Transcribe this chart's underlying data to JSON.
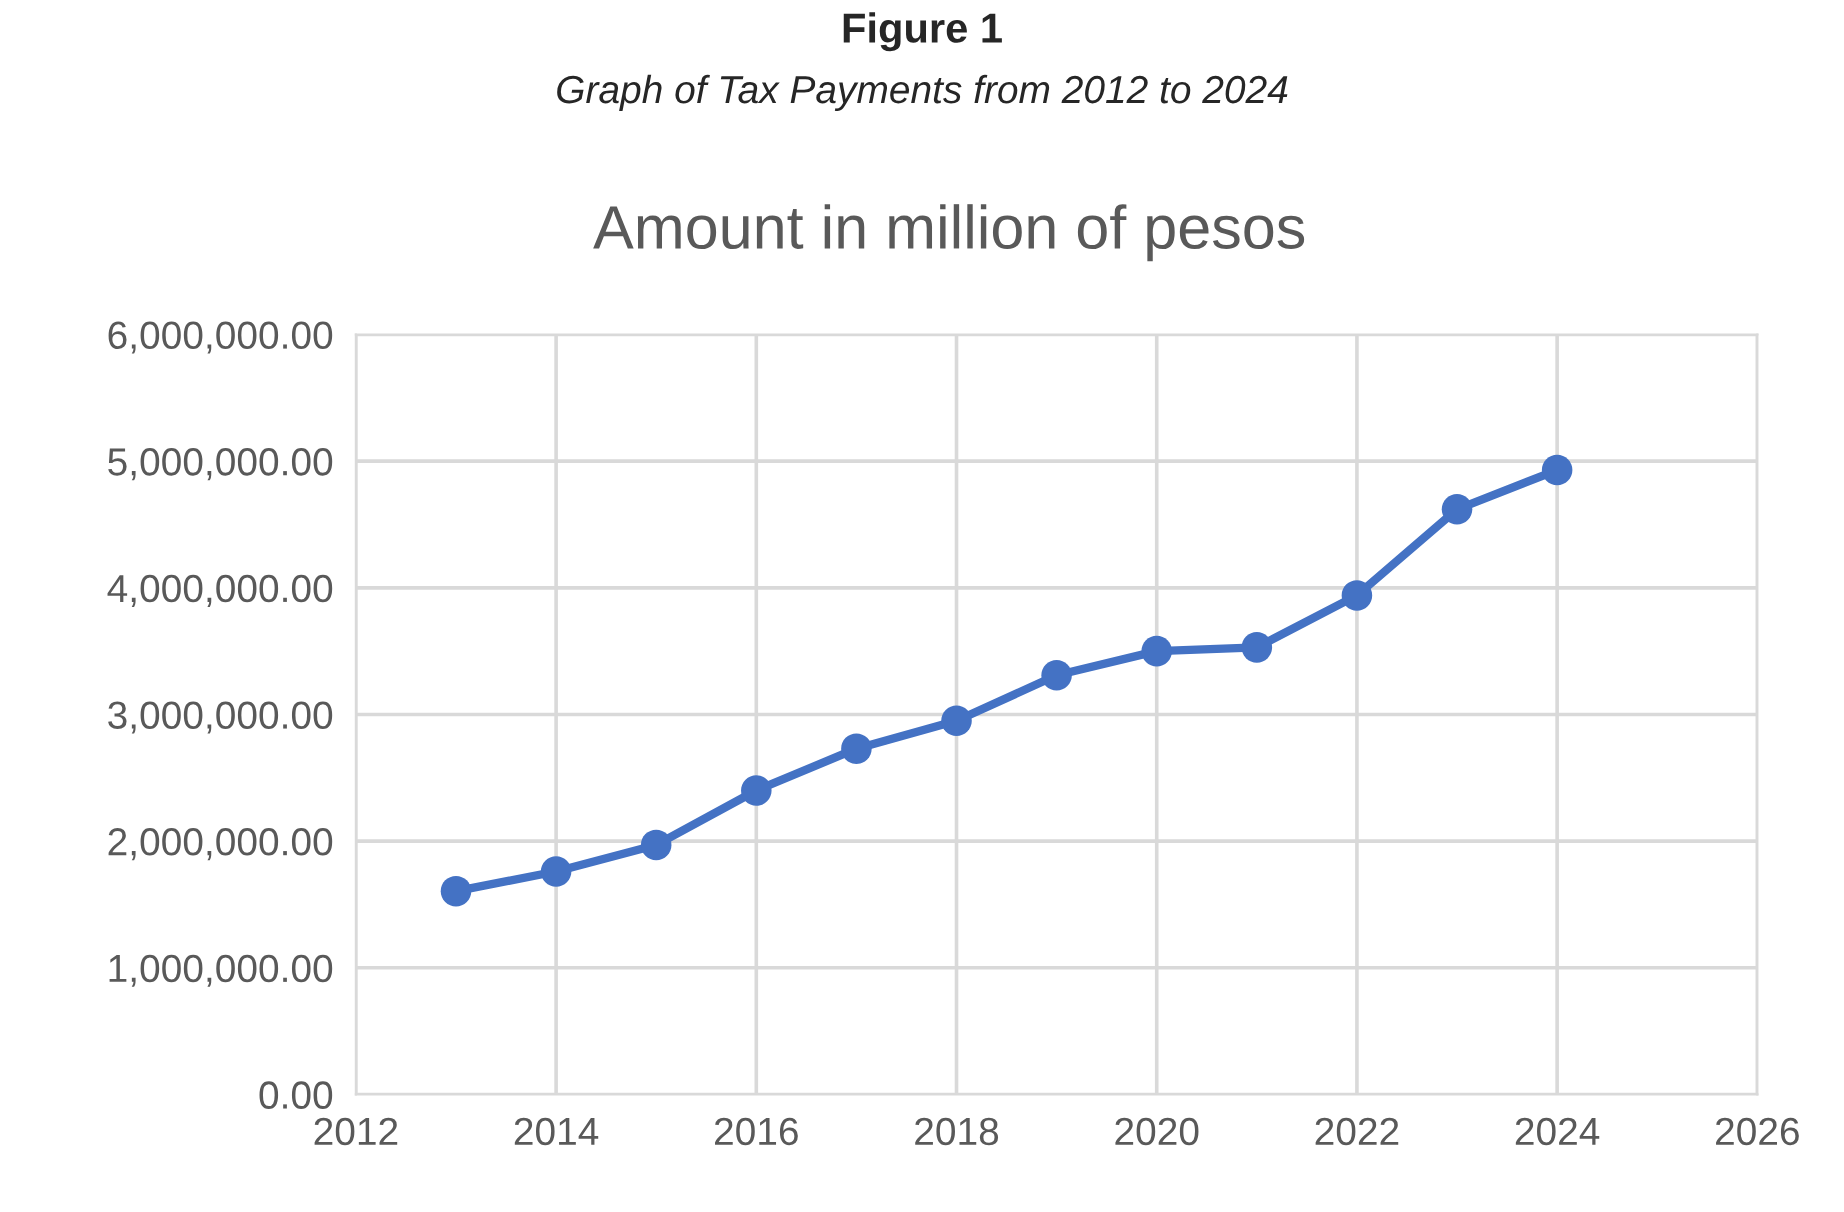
{
  "chart_data": {
    "type": "line",
    "title": "Figure 1",
    "subtitle": "Graph of Tax Payments from 2012 to 2024",
    "annotations": [
      "Amount in million of pesos"
    ],
    "x": [
      2013,
      2014,
      2015,
      2016,
      2017,
      2018,
      2019,
      2020,
      2021,
      2022,
      2023,
      2024
    ],
    "series": [
      {
        "color": "#4472c4",
        "values": [
          1605000,
          1760000,
          1970000,
          2400000,
          2730000,
          2950000,
          3310000,
          3500000,
          3530000,
          3940000,
          4620000,
          4930000
        ]
      }
    ],
    "xlim": [
      2012,
      2026
    ],
    "xticks": [
      2012,
      2014,
      2016,
      2018,
      2020,
      2022,
      2024,
      2026
    ],
    "ylim": [
      0,
      6000000
    ],
    "yticks": [
      {
        "value": 0,
        "label": "0.00"
      },
      {
        "value": 1000000,
        "label": "1,000,000.00"
      },
      {
        "value": 2000000,
        "label": "2,000,000.00"
      },
      {
        "value": 3000000,
        "label": "3,000,000.00"
      },
      {
        "value": 4000000,
        "label": "4,000,000.00"
      },
      {
        "value": 5000000,
        "label": "5,000,000.00"
      },
      {
        "value": 6000000,
        "label": "6,000,000.00"
      }
    ],
    "grid": true,
    "marker": "circle",
    "line_style": "solid",
    "legend": false
  }
}
